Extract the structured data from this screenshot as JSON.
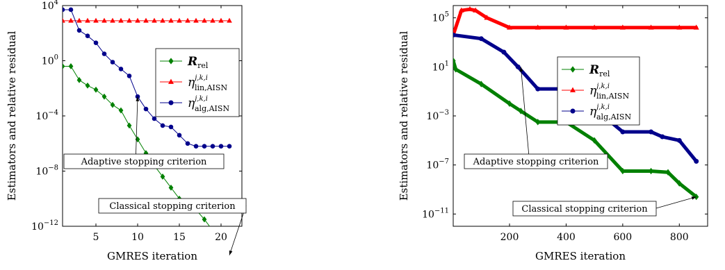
{
  "chart_data": [
    {
      "type": "line",
      "xlabel": "GMRES iteration",
      "ylabel": "Estimators and relative residual",
      "yscale": "log",
      "xlim": [
        1,
        22.5
      ],
      "ylim_exp": [
        -12,
        4
      ],
      "xticks": [
        5,
        10,
        15,
        20
      ],
      "yticks_exp": [
        4,
        0,
        -4,
        -8,
        -12
      ],
      "legend": "right",
      "series": [
        {
          "name_base": "R",
          "name_sub": "rel",
          "color": "#008000",
          "marker": "diamond",
          "x": [
            1,
            2,
            3,
            4,
            5,
            6,
            7,
            8,
            9,
            10,
            11,
            12,
            13,
            14,
            15,
            16,
            17,
            18,
            19,
            20,
            21
          ],
          "log10_y": [
            -0.4,
            -0.4,
            -1.4,
            -1.8,
            -2.1,
            -2.6,
            -3.2,
            -3.6,
            -4.7,
            -5.7,
            -6.7,
            -7.6,
            -8.4,
            -9.2,
            -10,
            -10.4,
            -10.8,
            -11.5,
            -12.3,
            -13.2,
            -14.1
          ]
        },
        {
          "name_base": "η",
          "name_sup": "j,k,i",
          "name_sub": "lin,AISN",
          "color": "#ff0000",
          "marker": "triangle",
          "x": [
            1,
            2,
            3,
            4,
            5,
            6,
            7,
            8,
            9,
            10,
            11,
            12,
            13,
            14,
            15,
            16,
            17,
            18,
            19,
            20,
            21
          ],
          "log10_y": [
            2.9,
            2.9,
            2.9,
            2.9,
            2.9,
            2.9,
            2.9,
            2.9,
            2.9,
            2.9,
            2.9,
            2.9,
            2.9,
            2.9,
            2.9,
            2.9,
            2.9,
            2.9,
            2.9,
            2.9,
            2.9
          ]
        },
        {
          "name_base": "η",
          "name_sup": "j,k,i",
          "name_sub": "alg,AISN",
          "color": "#00008b",
          "marker": "circle",
          "x": [
            1,
            2,
            3,
            4,
            5,
            6,
            7,
            8,
            9,
            10,
            11,
            12,
            13,
            14,
            15,
            16,
            17,
            18,
            19,
            20,
            21
          ],
          "log10_y": [
            3.7,
            3.7,
            2.2,
            1.8,
            1.3,
            0.5,
            -0.1,
            -0.6,
            -1.1,
            -2.6,
            -3.5,
            -4.2,
            -4.7,
            -4.8,
            -5.4,
            -6.0,
            -6.2,
            -6.2,
            -6.2,
            -6.2,
            -6.2
          ]
        }
      ],
      "annotations": [
        {
          "text": "Adaptive stopping criterion",
          "target_x": 10,
          "target_log10_y": -2.6
        },
        {
          "text": "Classical stopping criterion",
          "target_x": 21,
          "target_log10_y": -14.1
        }
      ]
    },
    {
      "type": "line",
      "xlabel": "GMRES iteration",
      "ylabel": "Estimators and relative residual",
      "yscale": "log",
      "xlim": [
        1,
        900
      ],
      "ylim_exp": [
        -12,
        6
      ],
      "xticks": [
        200,
        400,
        600,
        800
      ],
      "yticks_exp": [
        5,
        1,
        -3,
        -7,
        -11
      ],
      "legend": "right",
      "series": [
        {
          "name_base": "R",
          "name_sub": "rel",
          "color": "#008000",
          "marker": "diamond",
          "x": [
            1,
            10,
            100,
            200,
            240,
            300,
            400,
            500,
            600,
            700,
            760,
            800,
            860
          ],
          "log10_y": [
            1.5,
            0.8,
            -0.4,
            -2.0,
            -2.6,
            -3.5,
            -3.5,
            -5.0,
            -7.5,
            -7.5,
            -7.6,
            -8.5,
            -9.6
          ]
        },
        {
          "name_base": "η",
          "name_sup": "j,k,i",
          "name_sub": "lin,AISN",
          "color": "#ff0000",
          "marker": "triangle",
          "x": [
            1,
            30,
            60,
            80,
            120,
            200,
            300,
            400,
            500,
            600,
            700,
            800,
            860
          ],
          "log10_y": [
            3.6,
            5.6,
            5.7,
            5.6,
            5.0,
            4.2,
            4.2,
            4.2,
            4.2,
            4.2,
            4.2,
            4.2,
            4.2
          ]
        },
        {
          "name_base": "η",
          "name_sup": "j,k,i",
          "name_sub": "alg,AISN",
          "color": "#00008b",
          "marker": "circle",
          "x": [
            1,
            100,
            180,
            230,
            300,
            420,
            480,
            600,
            700,
            740,
            800,
            860
          ],
          "log10_y": [
            3.6,
            3.3,
            2.2,
            1.0,
            -0.8,
            -0.8,
            -2.0,
            -4.3,
            -4.3,
            -4.7,
            -5.0,
            -6.7
          ]
        }
      ],
      "annotations": [
        {
          "text": "Adaptive stopping criterion",
          "target_x": 240,
          "target_log10_y": 1.0
        },
        {
          "text": "Classical stopping criterion",
          "target_x": 860,
          "target_log10_y": -9.6
        }
      ]
    }
  ]
}
